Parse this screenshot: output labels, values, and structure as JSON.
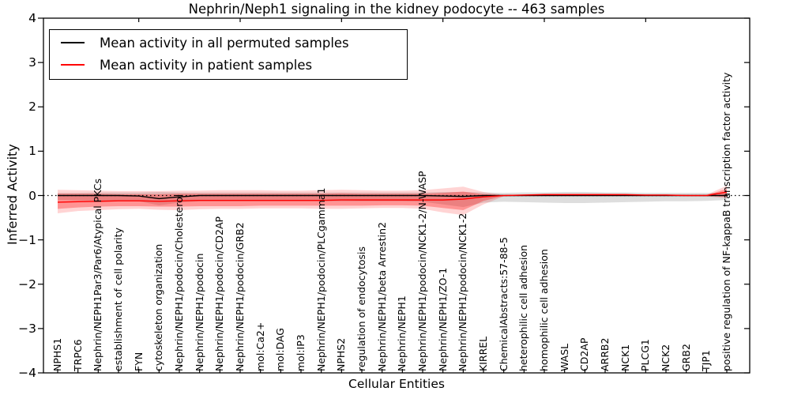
{
  "title": "Nephrin/Neph1 signaling in the kidney podocyte -- 463 samples",
  "legend": {
    "position": "upper left",
    "items": [
      {
        "label": "Mean activity in all permuted samples",
        "color": "#000000"
      },
      {
        "label": "Mean activity in patient samples",
        "color": "#ff0000"
      }
    ]
  },
  "chart_data": {
    "type": "line",
    "title": "Nephrin/Neph1 signaling in the kidney podocyte -- 463 samples",
    "xlabel": "Cellular Entities",
    "ylabel": "Inferred Activity",
    "ylim": [
      -4,
      4
    ],
    "grid": false,
    "legend_position": "upper left",
    "yticks": [
      "4",
      "3",
      "2",
      "1",
      "0",
      "−1",
      "−2",
      "−3",
      "−4"
    ],
    "xticks_major_indices": [
      4,
      9,
      14,
      19,
      24,
      29
    ],
    "categories": [
      "NPHS1",
      "TRPC6",
      "Nephrin/NEPH1Par3/Par6/Atypical PKCs",
      "establishment of cell polarity",
      "FYN",
      "cytoskeleton organization",
      "Nephrin/NEPH1/podocin/Cholesterol",
      "Nephrin/NEPH1/podocin",
      "Nephrin/NEPH1/podocin/CD2AP",
      "Nephrin/NEPH1/podocin/GRB2",
      "mol:Ca2+",
      "mol:DAG",
      "mol:IP3",
      "Nephrin/NEPH1/podocin/PLCgamma1",
      "NPHS2",
      "regulation of endocytosis",
      "Nephrin/NEPH1/beta Arrestin2",
      "Nephrin/NEPH1",
      "Nephrin/NEPH1/podocin/NCK1-2/N-WASP",
      "Nephrin/NEPH1/ZO-1",
      "Nephrin/NEPH1/podocin/NCK1-2",
      "KIRREL",
      "ChemicalAbstracts:57-88-5",
      "heterophilic cell adhesion",
      "homophilic cell adhesion",
      "WASL",
      "CD2AP",
      "ARRB2",
      "NCK1",
      "PLCG1",
      "NCK2",
      "GRB2",
      "TJP1",
      "positive regulation of NF-kappaB transcription factor activity"
    ],
    "series": [
      {
        "name": "Mean activity in all permuted samples",
        "color": "#000000",
        "values": [
          0,
          0,
          0,
          0,
          -0.01,
          -0.07,
          -0.03,
          0,
          0,
          0,
          0,
          0,
          0,
          0,
          0,
          0,
          0,
          0,
          0,
          -0.01,
          -0.02,
          0,
          0,
          0,
          0,
          0,
          0,
          0,
          0,
          0,
          0,
          0,
          0,
          0
        ]
      },
      {
        "name": "Mean activity in patient samples",
        "color": "#ff0000",
        "values": [
          -0.15,
          -0.14,
          -0.13,
          -0.12,
          -0.12,
          -0.13,
          -0.12,
          -0.11,
          -0.11,
          -0.11,
          -0.11,
          -0.11,
          -0.11,
          -0.11,
          -0.1,
          -0.1,
          -0.1,
          -0.1,
          -0.1,
          -0.1,
          -0.08,
          -0.03,
          0,
          0.01,
          0.02,
          0.02,
          0.02,
          0.02,
          0.02,
          0.01,
          0.01,
          0,
          0,
          0.08
        ]
      }
    ],
    "bands": [
      {
        "name": "permuted-samples-range",
        "color": "rgba(0,0,0,0.13)",
        "upper": [
          0.06,
          0.06,
          0.07,
          0.07,
          0.07,
          0.08,
          0.07,
          0.07,
          0.07,
          0.07,
          0.07,
          0.07,
          0.07,
          0.07,
          0.07,
          0.07,
          0.07,
          0.07,
          0.07,
          0.08,
          0.08,
          0.07,
          0.06,
          0.07,
          0.07,
          0.08,
          0.08,
          0.07,
          0.07,
          0.06,
          0.06,
          0.06,
          0.06,
          0.06
        ],
        "lower": [
          -0.1,
          -0.11,
          -0.12,
          -0.12,
          -0.13,
          -0.22,
          -0.16,
          -0.13,
          -0.13,
          -0.13,
          -0.13,
          -0.13,
          -0.13,
          -0.13,
          -0.13,
          -0.13,
          -0.13,
          -0.13,
          -0.14,
          -0.2,
          -0.26,
          -0.16,
          -0.14,
          -0.15,
          -0.16,
          -0.17,
          -0.17,
          -0.16,
          -0.15,
          -0.14,
          -0.13,
          -0.13,
          -0.12,
          -0.1
        ]
      },
      {
        "name": "patient-samples-outer",
        "color": "rgba(255,0,0,0.17)",
        "upper": [
          0.13,
          0.12,
          0.11,
          0.1,
          0.1,
          0.1,
          0.11,
          0.11,
          0.12,
          0.12,
          0.12,
          0.11,
          0.11,
          0.12,
          0.13,
          0.12,
          0.11,
          0.11,
          0.12,
          0.16,
          0.2,
          0.08,
          0.01,
          0.03,
          0.04,
          0.04,
          0.04,
          0.04,
          0.03,
          0.03,
          0.03,
          0.02,
          0.02,
          0.22
        ],
        "lower": [
          -0.4,
          -0.35,
          -0.33,
          -0.31,
          -0.3,
          -0.32,
          -0.33,
          -0.31,
          -0.3,
          -0.3,
          -0.29,
          -0.29,
          -0.29,
          -0.3,
          -0.3,
          -0.29,
          -0.28,
          -0.28,
          -0.3,
          -0.38,
          -0.44,
          -0.2,
          -0.02,
          -0.01,
          0,
          0,
          0,
          0,
          -0.01,
          -0.01,
          -0.01,
          -0.01,
          -0.02,
          -0.06
        ]
      },
      {
        "name": "patient-samples-inner",
        "color": "rgba(255,0,0,0.30)",
        "upper": [
          0.04,
          0.04,
          0.04,
          0.03,
          0.03,
          0.03,
          0.04,
          0.04,
          0.04,
          0.04,
          0.04,
          0.04,
          0.04,
          0.04,
          0.05,
          0.04,
          0.04,
          0.04,
          0.04,
          0.06,
          0.09,
          0.03,
          0.01,
          0.02,
          0.03,
          0.03,
          0.03,
          0.03,
          0.03,
          0.02,
          0.02,
          0.01,
          0.01,
          0.15
        ],
        "lower": [
          -0.3,
          -0.27,
          -0.25,
          -0.24,
          -0.24,
          -0.25,
          -0.25,
          -0.24,
          -0.24,
          -0.24,
          -0.23,
          -0.23,
          -0.23,
          -0.23,
          -0.23,
          -0.23,
          -0.22,
          -0.22,
          -0.23,
          -0.28,
          -0.33,
          -0.12,
          -0.01,
          0,
          0.01,
          0.01,
          0.01,
          0.01,
          0.01,
          0,
          0,
          -0.01,
          -0.01,
          -0.03
        ]
      }
    ],
    "zero_line": {
      "style": "dotted",
      "color": "#000000",
      "y": 0
    }
  }
}
